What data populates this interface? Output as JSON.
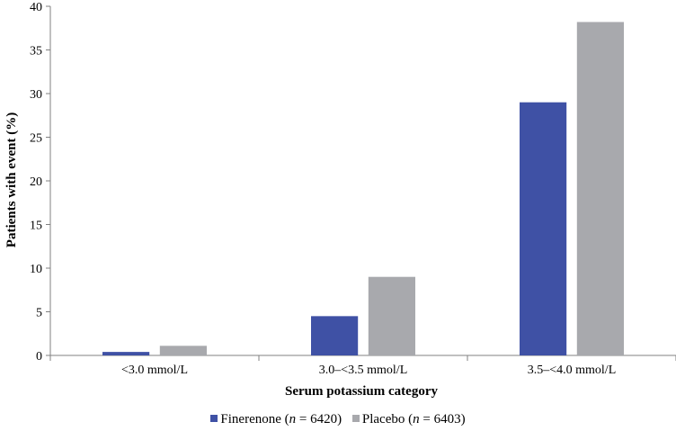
{
  "chart_data": {
    "type": "bar",
    "categories": [
      "<3.0 mmol/L",
      "3.0–<3.5 mmol/L",
      "3.5–<4.0 mmol/L"
    ],
    "series": [
      {
        "name": "Finerenone",
        "values": [
          0.4,
          4.5,
          29.0
        ]
      },
      {
        "name": "Placebo",
        "values": [
          1.1,
          9.0,
          38.2
        ]
      }
    ],
    "xlabel": "Serum potassium category",
    "ylabel": "Patients with event (%)",
    "ylim": [
      0,
      40
    ],
    "yticks": [
      0,
      5,
      10,
      15,
      20,
      25,
      30,
      35,
      40
    ],
    "grid": false,
    "legend_position": "bottom-center"
  },
  "legend": {
    "items": [
      {
        "name": "Finerenone",
        "pre": "Finerenone (",
        "n_var": "n",
        "post": " = 6420)"
      },
      {
        "name": "Placebo",
        "pre": "Placebo (",
        "n_var": "n",
        "post": " = 6403)"
      }
    ]
  },
  "colors": {
    "finerenone": "#3f51a5",
    "placebo": "#a8a9ad",
    "axis": "#808080"
  }
}
